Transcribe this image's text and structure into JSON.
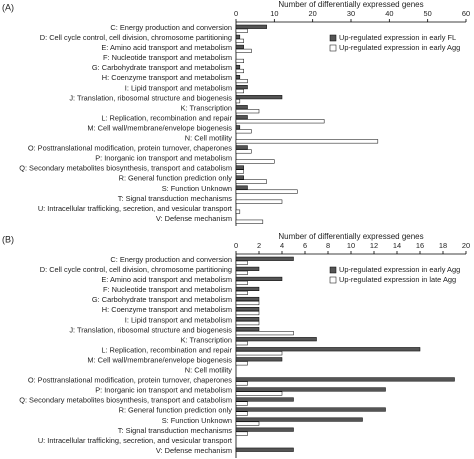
{
  "chart_data": [
    {
      "type": "barh",
      "panel_label": "(A)",
      "x_label": "Number of differentially expressed genes",
      "categories": [
        "C: Energy production and conversion",
        "D: Cell cycle control, cell division, chromosome partitioning",
        "E: Amino acid transport and metabolism",
        "F: Nucleotide transport and metabolism",
        "G: Carbohydrate transport and metabolism",
        "H: Coenzyme transport and metabolism",
        "I: Lipid transport and metabolism",
        "J: Translation, ribosomal structure and biogenesis",
        "K: Transcription",
        "L: Replication, recombination and repair",
        "M: Cell wall/membrane/envelope biogenesis",
        "N: Cell motility",
        "O: Posttranslational modification, protein turnover, chaperones",
        "P: Inorganic ion transport and metabolism",
        "Q: Secondary metabolites biosynthesis, transport and catabolism",
        "R: General function prediction only",
        "S: Function Unknown",
        "T: Signal transduction mechanisms",
        "U: Intracellular trafficking, secretion, and vesicular transport",
        "V: Defense mechanism"
      ],
      "series": [
        {
          "name": "Up-regulated expression in early FL",
          "color": "#555555",
          "values": [
            8,
            1,
            2,
            0,
            1,
            1,
            3,
            12,
            3,
            3,
            1,
            0,
            3,
            0,
            2,
            2,
            3,
            0,
            0,
            0
          ]
        },
        {
          "name": "Up-regulated expression in early Agg",
          "color": "#ffffff",
          "values": [
            3,
            2,
            4,
            2,
            2,
            3,
            2,
            1,
            6,
            23,
            4,
            37,
            4,
            10,
            2,
            8,
            16,
            12,
            1,
            7
          ]
        }
      ],
      "xlim": [
        0,
        60
      ],
      "xticks": [
        0,
        10,
        20,
        30,
        40,
        50,
        60
      ],
      "legend": "upper right"
    },
    {
      "type": "barh",
      "panel_label": "(B)",
      "x_label": "Number of differentially expressed genes",
      "categories": [
        "C: Energy production and conversion",
        "D: Cell cycle control, cell division, chromosome partitioning",
        "E: Amino acid transport and metabolism",
        "F: Nucleotide transport and metabolism",
        "G: Carbohydrate transport and metabolism",
        "H: Coenzyme transport and metabolism",
        "I: Lipid transport and metabolism",
        "J: Translation, ribosomal structure and biogenesis",
        "K: Transcription",
        "L: Replication, recombination and repair",
        "M: Cell wall/membrane/envelope biogenesis",
        "N: Cell motility",
        "O: Posttranslational modification, protein turnover, chaperones",
        "P: Inorganic ion transport and metabolism",
        "Q: Secondary metabolites biosynthesis, transport and catabolism",
        "R: General function prediction only",
        "S: Function Unknown",
        "T: Signal transduction mechanisms",
        "U: Intracellular trafficking, secretion, and vesicular transport",
        "V: Defense mechanism"
      ],
      "series": [
        {
          "name": "Up-regulated expression in early Agg",
          "color": "#555555",
          "values": [
            5,
            2,
            4,
            2,
            2,
            2,
            2,
            2,
            7,
            16,
            4,
            0,
            19,
            13,
            5,
            13,
            11,
            5,
            0,
            5
          ]
        },
        {
          "name": "Up-regulated expression in late Agg",
          "color": "#ffffff",
          "values": [
            1,
            1,
            1,
            1,
            2,
            2,
            2,
            5,
            1,
            4,
            1,
            0,
            1,
            4,
            1,
            1,
            2,
            1,
            0,
            0
          ]
        }
      ],
      "xlim": [
        0,
        20
      ],
      "xticks": [
        0,
        2,
        4,
        6,
        8,
        10,
        12,
        14,
        16,
        18,
        20
      ],
      "legend": "upper right"
    }
  ]
}
